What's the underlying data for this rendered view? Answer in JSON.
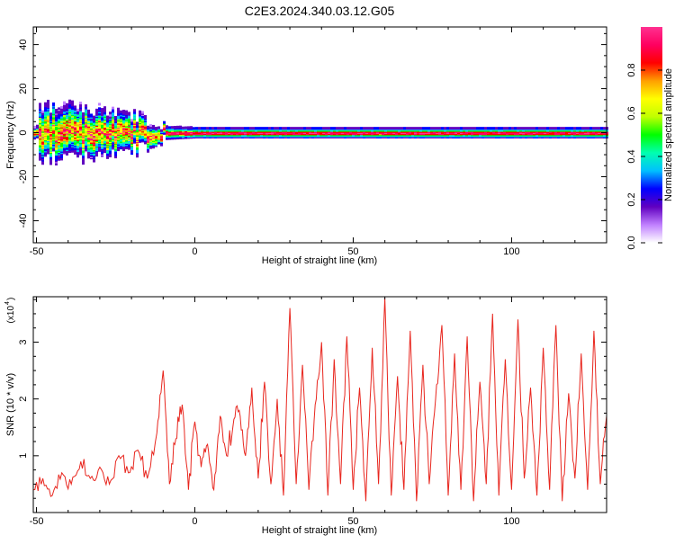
{
  "title": "C2E3.2024.340.03.12.G05",
  "chart_data": [
    {
      "type": "heatmap",
      "xlabel": "Height of straight line (km)",
      "ylabel": "Frequency (Hz)",
      "xlim": [
        -51,
        130
      ],
      "ylim": [
        -50,
        48
      ],
      "xticks": [
        "-50",
        "0",
        "50",
        "100"
      ],
      "xtick_values": [
        -50,
        0,
        50,
        100
      ],
      "yticks": [
        "40",
        "20",
        "0",
        "-20",
        "-40"
      ],
      "ytick_values": [
        40,
        20,
        0,
        -20,
        -40
      ],
      "colorbar": {
        "label": "Normalized spectral amplitude",
        "range": [
          0,
          1
        ],
        "ticks": [
          "0.0",
          "0.2",
          "0.4",
          "0.6",
          "0.8"
        ],
        "tick_values": [
          0,
          0.2,
          0.4,
          0.6,
          0.8
        ],
        "colors": [
          "#ffffff",
          "#c080ff",
          "#6000c0",
          "#0000ff",
          "#00c0ff",
          "#00ffb0",
          "#00ff00",
          "#c0ff00",
          "#ffff00",
          "#ffa000",
          "#ff0000",
          "#ff0060",
          "#ff3090"
        ]
      },
      "band_center_hz": 0,
      "band_spread_hz": {
        "-50": 12,
        "-30": 10,
        "-20": 8,
        "-10": 3,
        "0": 2.5,
        "50": 2.5,
        "100": 2.5,
        "130": 2.5
      }
    },
    {
      "type": "line",
      "xlabel": "Height of straight line (km)",
      "ylabel": "SNR (10 * v/v)",
      "yscale_note": "(x10",
      "yscale_exponent": "4",
      "xlim": [
        -51,
        130
      ],
      "ylim": [
        0,
        3.8
      ],
      "xticks": [
        "-50",
        "0",
        "50",
        "100"
      ],
      "xtick_values": [
        -50,
        0,
        50,
        100
      ],
      "yticks": [
        "1",
        "2",
        "3"
      ],
      "ytick_values": [
        1,
        2,
        3
      ],
      "series": [
        {
          "color": "#e8261e",
          "x": [
            -51,
            -48,
            -45,
            -42,
            -39,
            -36,
            -33,
            -30,
            -27,
            -24,
            -21,
            -18,
            -15,
            -12,
            -10,
            -8,
            -6,
            -4,
            -2,
            0,
            2,
            4,
            6,
            8,
            10,
            12,
            14,
            16,
            18,
            20,
            22,
            24,
            26,
            28,
            30,
            32,
            34,
            36,
            38,
            40,
            42,
            44,
            46,
            48,
            50,
            52,
            54,
            56,
            58,
            60,
            62,
            64,
            66,
            68,
            70,
            72,
            74,
            76,
            78,
            80,
            82,
            84,
            86,
            88,
            90,
            92,
            94,
            96,
            98,
            100,
            102,
            104,
            106,
            108,
            110,
            112,
            114,
            116,
            118,
            120,
            122,
            124,
            126,
            128,
            130
          ],
          "y": [
            0.4,
            0.6,
            0.3,
            0.7,
            0.5,
            0.9,
            0.6,
            0.8,
            0.5,
            1.0,
            0.7,
            1.1,
            0.6,
            1.4,
            2.5,
            0.5,
            1.3,
            1.9,
            0.4,
            1.6,
            0.8,
            1.2,
            0.4,
            1.7,
            1.0,
            1.5,
            1.8,
            1.0,
            2.2,
            0.6,
            2.3,
            0.5,
            2.0,
            0.3,
            3.6,
            0.5,
            2.6,
            0.4,
            1.9,
            3.0,
            0.3,
            2.7,
            0.5,
            3.1,
            0.4,
            2.2,
            0.2,
            2.9,
            0.5,
            3.8,
            0.3,
            2.4,
            0.4,
            3.2,
            0.2,
            2.6,
            0.5,
            2.0,
            3.3,
            0.3,
            2.8,
            0.4,
            3.1,
            0.2,
            2.3,
            0.5,
            3.5,
            0.3,
            2.7,
            0.4,
            3.4,
            0.6,
            2.2,
            0.3,
            2.9,
            0.4,
            3.3,
            0.2,
            2.1,
            0.6,
            2.8,
            0.4,
            3.2,
            0.5,
            1.7
          ]
        }
      ]
    }
  ]
}
